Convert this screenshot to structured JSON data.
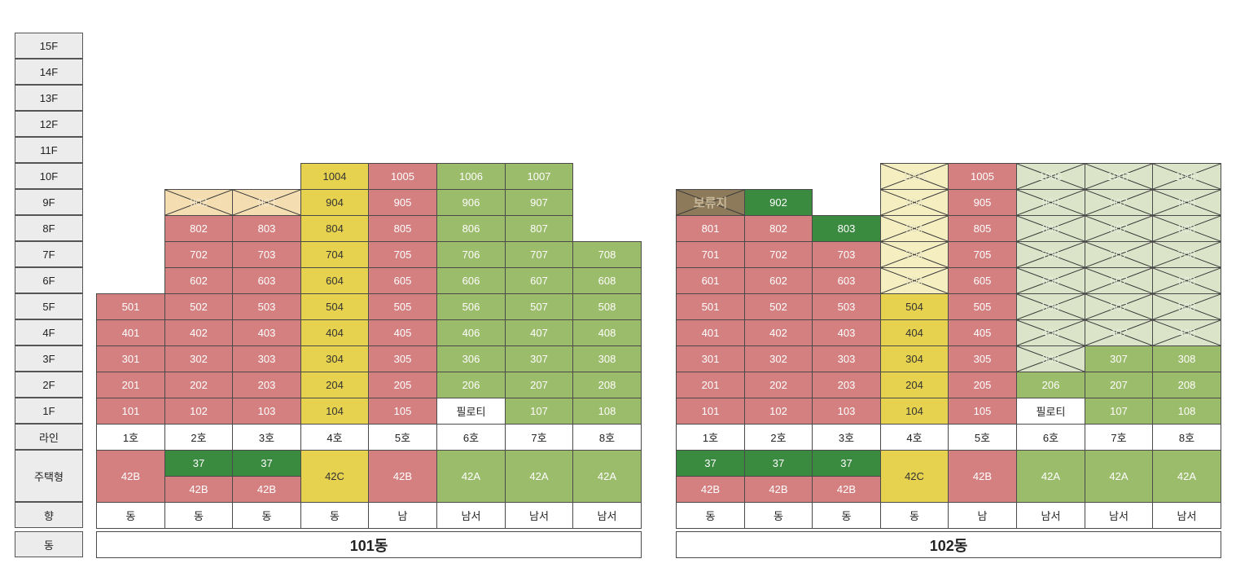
{
  "floors": [
    "15F",
    "14F",
    "13F",
    "12F",
    "11F",
    "10F",
    "9F",
    "8F",
    "7F",
    "6F",
    "5F",
    "4F",
    "3F",
    "2F",
    "1F"
  ],
  "row_labels": {
    "line": "라인",
    "type": "주택형",
    "direction": "향",
    "building": "동"
  },
  "buildings": [
    {
      "name": "101동",
      "lines": [
        "1호",
        "2호",
        "3호",
        "4호",
        "5호",
        "6호",
        "7호",
        "8호"
      ],
      "directions": [
        "동",
        "동",
        "동",
        "동",
        "남",
        "남서",
        "남서",
        "남서"
      ],
      "types": [
        {
          "main": "42B",
          "color": "red"
        },
        {
          "top": "37",
          "bottom": "42B",
          "top_color": "dgr",
          "bottom_color": "red"
        },
        {
          "top": "37",
          "bottom": "42B",
          "top_color": "dgr",
          "bottom_color": "red"
        },
        {
          "main": "42C",
          "color": "yel"
        },
        {
          "main": "42B",
          "color": "red"
        },
        {
          "main": "42A",
          "color": "grn"
        },
        {
          "main": "42A",
          "color": "grn"
        },
        {
          "main": "42A",
          "color": "grn"
        }
      ],
      "units": [
        {
          "floor": 10,
          "col": 3,
          "label": "1004",
          "color": "yel"
        },
        {
          "floor": 10,
          "col": 4,
          "label": "1005",
          "color": "red"
        },
        {
          "floor": 10,
          "col": 5,
          "label": "1006",
          "color": "grn"
        },
        {
          "floor": 10,
          "col": 6,
          "label": "1007",
          "color": "grn"
        },
        {
          "floor": 9,
          "col": 1,
          "label": "902",
          "color": "tan",
          "x": true
        },
        {
          "floor": 9,
          "col": 2,
          "label": "903",
          "color": "tan",
          "x": true
        },
        {
          "floor": 9,
          "col": 3,
          "label": "904",
          "color": "yel"
        },
        {
          "floor": 9,
          "col": 4,
          "label": "905",
          "color": "red"
        },
        {
          "floor": 9,
          "col": 5,
          "label": "906",
          "color": "grn"
        },
        {
          "floor": 9,
          "col": 6,
          "label": "907",
          "color": "grn"
        },
        {
          "floor": 8,
          "col": 1,
          "label": "802",
          "color": "red"
        },
        {
          "floor": 8,
          "col": 2,
          "label": "803",
          "color": "red"
        },
        {
          "floor": 8,
          "col": 3,
          "label": "804",
          "color": "yel"
        },
        {
          "floor": 8,
          "col": 4,
          "label": "805",
          "color": "red"
        },
        {
          "floor": 8,
          "col": 5,
          "label": "806",
          "color": "grn"
        },
        {
          "floor": 8,
          "col": 6,
          "label": "807",
          "color": "grn"
        },
        {
          "floor": 7,
          "col": 1,
          "label": "702",
          "color": "red"
        },
        {
          "floor": 7,
          "col": 2,
          "label": "703",
          "color": "red"
        },
        {
          "floor": 7,
          "col": 3,
          "label": "704",
          "color": "yel"
        },
        {
          "floor": 7,
          "col": 4,
          "label": "705",
          "color": "red"
        },
        {
          "floor": 7,
          "col": 5,
          "label": "706",
          "color": "grn"
        },
        {
          "floor": 7,
          "col": 6,
          "label": "707",
          "color": "grn"
        },
        {
          "floor": 7,
          "col": 7,
          "label": "708",
          "color": "grn"
        },
        {
          "floor": 6,
          "col": 1,
          "label": "602",
          "color": "red"
        },
        {
          "floor": 6,
          "col": 2,
          "label": "603",
          "color": "red"
        },
        {
          "floor": 6,
          "col": 3,
          "label": "604",
          "color": "yel"
        },
        {
          "floor": 6,
          "col": 4,
          "label": "605",
          "color": "red"
        },
        {
          "floor": 6,
          "col": 5,
          "label": "606",
          "color": "grn"
        },
        {
          "floor": 6,
          "col": 6,
          "label": "607",
          "color": "grn"
        },
        {
          "floor": 6,
          "col": 7,
          "label": "608",
          "color": "grn"
        },
        {
          "floor": 5,
          "col": 0,
          "label": "501",
          "color": "red"
        },
        {
          "floor": 5,
          "col": 1,
          "label": "502",
          "color": "red"
        },
        {
          "floor": 5,
          "col": 2,
          "label": "503",
          "color": "red"
        },
        {
          "floor": 5,
          "col": 3,
          "label": "504",
          "color": "yel"
        },
        {
          "floor": 5,
          "col": 4,
          "label": "505",
          "color": "red"
        },
        {
          "floor": 5,
          "col": 5,
          "label": "506",
          "color": "grn"
        },
        {
          "floor": 5,
          "col": 6,
          "label": "507",
          "color": "grn"
        },
        {
          "floor": 5,
          "col": 7,
          "label": "508",
          "color": "grn"
        },
        {
          "floor": 4,
          "col": 0,
          "label": "401",
          "color": "red"
        },
        {
          "floor": 4,
          "col": 1,
          "label": "402",
          "color": "red"
        },
        {
          "floor": 4,
          "col": 2,
          "label": "403",
          "color": "red"
        },
        {
          "floor": 4,
          "col": 3,
          "label": "404",
          "color": "yel"
        },
        {
          "floor": 4,
          "col": 4,
          "label": "405",
          "color": "red"
        },
        {
          "floor": 4,
          "col": 5,
          "label": "406",
          "color": "grn"
        },
        {
          "floor": 4,
          "col": 6,
          "label": "407",
          "color": "grn"
        },
        {
          "floor": 4,
          "col": 7,
          "label": "408",
          "color": "grn"
        },
        {
          "floor": 3,
          "col": 0,
          "label": "301",
          "color": "red"
        },
        {
          "floor": 3,
          "col": 1,
          "label": "302",
          "color": "red"
        },
        {
          "floor": 3,
          "col": 2,
          "label": "303",
          "color": "red"
        },
        {
          "floor": 3,
          "col": 3,
          "label": "304",
          "color": "yel"
        },
        {
          "floor": 3,
          "col": 4,
          "label": "305",
          "color": "red"
        },
        {
          "floor": 3,
          "col": 5,
          "label": "306",
          "color": "grn"
        },
        {
          "floor": 3,
          "col": 6,
          "label": "307",
          "color": "grn"
        },
        {
          "floor": 3,
          "col": 7,
          "label": "308",
          "color": "grn"
        },
        {
          "floor": 2,
          "col": 0,
          "label": "201",
          "color": "red"
        },
        {
          "floor": 2,
          "col": 1,
          "label": "202",
          "color": "red"
        },
        {
          "floor": 2,
          "col": 2,
          "label": "203",
          "color": "red"
        },
        {
          "floor": 2,
          "col": 3,
          "label": "204",
          "color": "yel"
        },
        {
          "floor": 2,
          "col": 4,
          "label": "205",
          "color": "red"
        },
        {
          "floor": 2,
          "col": 5,
          "label": "206",
          "color": "grn"
        },
        {
          "floor": 2,
          "col": 6,
          "label": "207",
          "color": "grn"
        },
        {
          "floor": 2,
          "col": 7,
          "label": "208",
          "color": "grn"
        },
        {
          "floor": 1,
          "col": 0,
          "label": "101",
          "color": "red"
        },
        {
          "floor": 1,
          "col": 1,
          "label": "102",
          "color": "red"
        },
        {
          "floor": 1,
          "col": 2,
          "label": "103",
          "color": "red"
        },
        {
          "floor": 1,
          "col": 3,
          "label": "104",
          "color": "yel"
        },
        {
          "floor": 1,
          "col": 4,
          "label": "105",
          "color": "red"
        },
        {
          "floor": 1,
          "col": 5,
          "label": "필로티",
          "color": "wht"
        },
        {
          "floor": 1,
          "col": 6,
          "label": "107",
          "color": "grn"
        },
        {
          "floor": 1,
          "col": 7,
          "label": "108",
          "color": "grn"
        }
      ]
    },
    {
      "name": "102동",
      "lines": [
        "1호",
        "2호",
        "3호",
        "4호",
        "5호",
        "6호",
        "7호",
        "8호"
      ],
      "directions": [
        "동",
        "동",
        "동",
        "동",
        "남",
        "남서",
        "남서",
        "남서"
      ],
      "types": [
        {
          "top": "37",
          "bottom": "42B",
          "top_color": "dgr",
          "bottom_color": "red"
        },
        {
          "top": "37",
          "bottom": "42B",
          "top_color": "dgr",
          "bottom_color": "red"
        },
        {
          "top": "37",
          "bottom": "42B",
          "top_color": "dgr",
          "bottom_color": "red"
        },
        {
          "main": "42C",
          "color": "yel"
        },
        {
          "main": "42B",
          "color": "red"
        },
        {
          "main": "42A",
          "color": "grn"
        },
        {
          "main": "42A",
          "color": "grn"
        },
        {
          "main": "42A",
          "color": "grn"
        }
      ],
      "units": [
        {
          "floor": 10,
          "col": 3,
          "label": "1004",
          "color": "pyel",
          "x": true
        },
        {
          "floor": 10,
          "col": 4,
          "label": "1005",
          "color": "red"
        },
        {
          "floor": 10,
          "col": 5,
          "label": "1006",
          "color": "pgrn",
          "x": true
        },
        {
          "floor": 10,
          "col": 6,
          "label": "1007",
          "color": "pgrn",
          "x": true
        },
        {
          "floor": 10,
          "col": 7,
          "label": "1008",
          "color": "pgrn",
          "x": true
        },
        {
          "floor": 9,
          "col": 0,
          "label": "보류지",
          "color": "brn",
          "x": true
        },
        {
          "floor": 9,
          "col": 1,
          "label": "902",
          "color": "dgr"
        },
        {
          "floor": 9,
          "col": 3,
          "label": "904",
          "color": "pyel",
          "x": true
        },
        {
          "floor": 9,
          "col": 4,
          "label": "905",
          "color": "red"
        },
        {
          "floor": 9,
          "col": 5,
          "label": "906",
          "color": "pgrn",
          "x": true
        },
        {
          "floor": 9,
          "col": 6,
          "label": "907",
          "color": "pgrn",
          "x": true
        },
        {
          "floor": 9,
          "col": 7,
          "label": "908",
          "color": "pgrn",
          "x": true
        },
        {
          "floor": 8,
          "col": 0,
          "label": "801",
          "color": "red"
        },
        {
          "floor": 8,
          "col": 1,
          "label": "802",
          "color": "red"
        },
        {
          "floor": 8,
          "col": 2,
          "label": "803",
          "color": "dgr"
        },
        {
          "floor": 8,
          "col": 3,
          "label": "804",
          "color": "pyel",
          "x": true
        },
        {
          "floor": 8,
          "col": 4,
          "label": "805",
          "color": "red"
        },
        {
          "floor": 8,
          "col": 5,
          "label": "806",
          "color": "pgrn",
          "x": true
        },
        {
          "floor": 8,
          "col": 6,
          "label": "807",
          "color": "pgrn",
          "x": true
        },
        {
          "floor": 8,
          "col": 7,
          "label": "808",
          "color": "pgrn",
          "x": true
        },
        {
          "floor": 7,
          "col": 0,
          "label": "701",
          "color": "red"
        },
        {
          "floor": 7,
          "col": 1,
          "label": "702",
          "color": "red"
        },
        {
          "floor": 7,
          "col": 2,
          "label": "703",
          "color": "red"
        },
        {
          "floor": 7,
          "col": 3,
          "label": "704",
          "color": "pyel",
          "x": true
        },
        {
          "floor": 7,
          "col": 4,
          "label": "705",
          "color": "red"
        },
        {
          "floor": 7,
          "col": 5,
          "label": "706",
          "color": "pgrn",
          "x": true
        },
        {
          "floor": 7,
          "col": 6,
          "label": "707",
          "color": "pgrn",
          "x": true
        },
        {
          "floor": 7,
          "col": 7,
          "label": "708",
          "color": "pgrn",
          "x": true
        },
        {
          "floor": 6,
          "col": 0,
          "label": "601",
          "color": "red"
        },
        {
          "floor": 6,
          "col": 1,
          "label": "602",
          "color": "red"
        },
        {
          "floor": 6,
          "col": 2,
          "label": "603",
          "color": "red"
        },
        {
          "floor": 6,
          "col": 3,
          "label": "604",
          "color": "pyel",
          "x": true
        },
        {
          "floor": 6,
          "col": 4,
          "label": "605",
          "color": "red"
        },
        {
          "floor": 6,
          "col": 5,
          "label": "606",
          "color": "pgrn",
          "x": true
        },
        {
          "floor": 6,
          "col": 6,
          "label": "607",
          "color": "pgrn",
          "x": true
        },
        {
          "floor": 6,
          "col": 7,
          "label": "608",
          "color": "pgrn",
          "x": true
        },
        {
          "floor": 5,
          "col": 0,
          "label": "501",
          "color": "red"
        },
        {
          "floor": 5,
          "col": 1,
          "label": "502",
          "color": "red"
        },
        {
          "floor": 5,
          "col": 2,
          "label": "503",
          "color": "red"
        },
        {
          "floor": 5,
          "col": 3,
          "label": "504",
          "color": "yel"
        },
        {
          "floor": 5,
          "col": 4,
          "label": "505",
          "color": "red"
        },
        {
          "floor": 5,
          "col": 5,
          "label": "506",
          "color": "pgrn",
          "x": true
        },
        {
          "floor": 5,
          "col": 6,
          "label": "507",
          "color": "pgrn",
          "x": true
        },
        {
          "floor": 5,
          "col": 7,
          "label": "508",
          "color": "pgrn",
          "x": true
        },
        {
          "floor": 4,
          "col": 0,
          "label": "401",
          "color": "red"
        },
        {
          "floor": 4,
          "col": 1,
          "label": "402",
          "color": "red"
        },
        {
          "floor": 4,
          "col": 2,
          "label": "403",
          "color": "red"
        },
        {
          "floor": 4,
          "col": 3,
          "label": "404",
          "color": "yel"
        },
        {
          "floor": 4,
          "col": 4,
          "label": "405",
          "color": "red"
        },
        {
          "floor": 4,
          "col": 5,
          "label": "406",
          "color": "pgrn",
          "x": true
        },
        {
          "floor": 4,
          "col": 6,
          "label": "407",
          "color": "pgrn",
          "x": true
        },
        {
          "floor": 4,
          "col": 7,
          "label": "408",
          "color": "pgrn",
          "x": true
        },
        {
          "floor": 3,
          "col": 0,
          "label": "301",
          "color": "red"
        },
        {
          "floor": 3,
          "col": 1,
          "label": "302",
          "color": "red"
        },
        {
          "floor": 3,
          "col": 2,
          "label": "303",
          "color": "red"
        },
        {
          "floor": 3,
          "col": 3,
          "label": "304",
          "color": "yel"
        },
        {
          "floor": 3,
          "col": 4,
          "label": "305",
          "color": "red"
        },
        {
          "floor": 3,
          "col": 5,
          "label": "306",
          "color": "pgrn",
          "x": true
        },
        {
          "floor": 3,
          "col": 6,
          "label": "307",
          "color": "grn"
        },
        {
          "floor": 3,
          "col": 7,
          "label": "308",
          "color": "grn"
        },
        {
          "floor": 2,
          "col": 0,
          "label": "201",
          "color": "red"
        },
        {
          "floor": 2,
          "col": 1,
          "label": "202",
          "color": "red"
        },
        {
          "floor": 2,
          "col": 2,
          "label": "203",
          "color": "red"
        },
        {
          "floor": 2,
          "col": 3,
          "label": "204",
          "color": "yel"
        },
        {
          "floor": 2,
          "col": 4,
          "label": "205",
          "color": "red"
        },
        {
          "floor": 2,
          "col": 5,
          "label": "206",
          "color": "grn"
        },
        {
          "floor": 2,
          "col": 6,
          "label": "207",
          "color": "grn"
        },
        {
          "floor": 2,
          "col": 7,
          "label": "208",
          "color": "grn"
        },
        {
          "floor": 1,
          "col": 0,
          "label": "101",
          "color": "red"
        },
        {
          "floor": 1,
          "col": 1,
          "label": "102",
          "color": "red"
        },
        {
          "floor": 1,
          "col": 2,
          "label": "103",
          "color": "red"
        },
        {
          "floor": 1,
          "col": 3,
          "label": "104",
          "color": "yel"
        },
        {
          "floor": 1,
          "col": 4,
          "label": "105",
          "color": "red"
        },
        {
          "floor": 1,
          "col": 5,
          "label": "필로티",
          "color": "wht"
        },
        {
          "floor": 1,
          "col": 6,
          "label": "107",
          "color": "grn"
        },
        {
          "floor": 1,
          "col": 7,
          "label": "108",
          "color": "grn"
        }
      ]
    }
  ]
}
